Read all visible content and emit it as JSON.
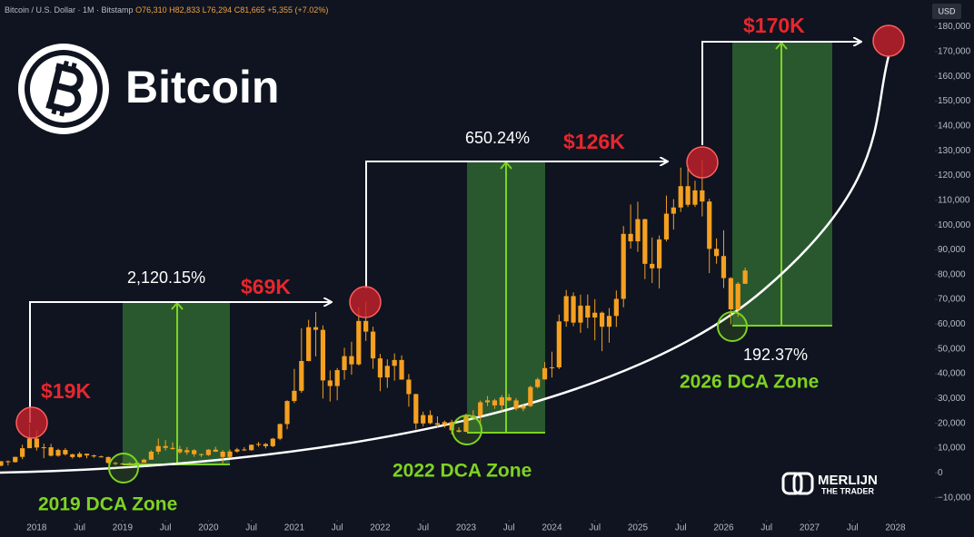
{
  "chart_data": {
    "type": "candlestick",
    "title": "Bitcoin",
    "symbol": "Bitcoin / U.S. Dollar · 1M · Bitstamp",
    "ohlc_legend": [
      "O76,310",
      "H82,833",
      "L76,294",
      "C81,665",
      "+5,355 (+7.02%)"
    ],
    "currency": "USD",
    "watermark": [
      "MERLIJN",
      "THE TRADER"
    ],
    "annotations": [
      "$19K",
      "$69K",
      "$126K",
      "$170K",
      "2,120.15%",
      "650.24%",
      "192.37%",
      "2019 DCA Zone",
      "2022 DCA Zone",
      "2026 DCA Zone"
    ],
    "color": "#f5a020",
    "x": [
      "2017-08",
      "2017-09",
      "2017-10",
      "2017-11",
      "2017-12",
      "2018-01",
      "2018-02",
      "2018-03",
      "2018-04",
      "2018-05",
      "2018-06",
      "2018-07",
      "2018-08",
      "2018-09",
      "2018-10",
      "2018-11",
      "2018-12",
      "2019-01",
      "2019-02",
      "2019-03",
      "2019-04",
      "2019-05",
      "2019-06",
      "2019-07",
      "2019-08",
      "2019-09",
      "2019-10",
      "2019-11",
      "2019-12",
      "2020-01",
      "2020-02",
      "2020-03",
      "2020-04",
      "2020-05",
      "2020-06",
      "2020-07",
      "2020-08",
      "2020-09",
      "2020-10",
      "2020-11",
      "2020-12",
      "2021-01",
      "2021-02",
      "2021-03",
      "2021-04",
      "2021-05",
      "2021-06",
      "2021-07",
      "2021-08",
      "2021-09",
      "2021-10",
      "2021-11",
      "2021-12",
      "2022-01",
      "2022-02",
      "2022-03",
      "2022-04",
      "2022-05",
      "2022-06",
      "2022-07",
      "2022-08",
      "2022-09",
      "2022-10",
      "2022-11",
      "2022-12",
      "2023-01",
      "2023-02",
      "2023-03",
      "2023-04",
      "2023-05",
      "2023-06",
      "2023-07",
      "2023-08",
      "2023-09",
      "2023-10",
      "2023-11",
      "2023-12",
      "2024-01",
      "2024-02",
      "2024-03",
      "2024-04",
      "2024-05",
      "2024-06",
      "2024-07",
      "2024-08",
      "2024-09",
      "2024-10",
      "2024-11",
      "2024-12",
      "2025-01",
      "2025-02",
      "2025-03",
      "2025-04",
      "2025-05",
      "2025-06",
      "2025-07",
      "2025-08",
      "2025-09",
      "2025-10",
      "2025-11",
      "2025-12",
      "2026-01",
      "2026-02",
      "2026-03",
      "2026-04"
    ],
    "open": [
      2870,
      4700,
      4340,
      6450,
      9950,
      13850,
      10220,
      10330,
      6920,
      9240,
      7490,
      6390,
      7730,
      7030,
      6630,
      6370,
      4020,
      3740,
      3460,
      3850,
      4100,
      5320,
      8560,
      10820,
      10080,
      9600,
      8290,
      9150,
      7550,
      7190,
      9350,
      8540,
      6410,
      8620,
      9450,
      9140,
      11340,
      11650,
      10780,
      13800,
      19700,
      28990,
      33110,
      45140,
      58790,
      57720,
      37300,
      35040,
      41460,
      47100,
      43790,
      61300,
      57000,
      46200,
      38500,
      43190,
      45540,
      37640,
      31790,
      19940,
      23310,
      20050,
      19430,
      20500,
      17170,
      16540,
      23130,
      23140,
      28480,
      29250,
      27220,
      30480,
      29230,
      25930,
      26960,
      34640,
      37720,
      42280,
      42580,
      61130,
      71330,
      60640,
      67490,
      62680,
      64630,
      58970,
      63330,
      70220,
      96450,
      93430,
      102400,
      84350,
      82550,
      94200,
      104600,
      107100,
      115700,
      108200,
      114000,
      109500,
      90400,
      87500,
      78600,
      66000,
      76310
    ],
    "high": [
      4750,
      4980,
      6470,
      11400,
      19666,
      17200,
      11800,
      11700,
      9750,
      9950,
      7760,
      8500,
      7750,
      7400,
      6980,
      6570,
      4400,
      4080,
      4200,
      4150,
      5640,
      9100,
      13880,
      13200,
      12330,
      10900,
      10400,
      9500,
      7750,
      9580,
      10500,
      9200,
      9460,
      10080,
      10380,
      11440,
      12470,
      12050,
      14100,
      19900,
      29300,
      41950,
      58350,
      61780,
      64900,
      59500,
      41330,
      42300,
      50500,
      52900,
      66900,
      69000,
      59000,
      47990,
      45800,
      48200,
      47400,
      39900,
      31950,
      24700,
      25200,
      22800,
      21100,
      21450,
      18400,
      23950,
      25250,
      29180,
      31000,
      29850,
      31400,
      31800,
      30200,
      27500,
      35200,
      38400,
      44700,
      48900,
      63900,
      73800,
      72800,
      71950,
      71980,
      70080,
      65100,
      66500,
      73600,
      99600,
      108300,
      109400,
      102500,
      95000,
      95800,
      111900,
      110500,
      123200,
      124500,
      117900,
      126200,
      110600,
      94600,
      97900,
      79000,
      77000,
      82833
    ],
    "low": [
      2700,
      2970,
      4150,
      5500,
      10700,
      9000,
      5900,
      6600,
      6500,
      7000,
      5750,
      6070,
      5880,
      6100,
      6200,
      3650,
      3120,
      3350,
      3390,
      3780,
      4100,
      5340,
      7450,
      9000,
      9300,
      7730,
      7300,
      6520,
      6430,
      6850,
      8450,
      3850,
      6150,
      8120,
      8830,
      8980,
      10540,
      9880,
      10380,
      13200,
      17600,
      28130,
      32300,
      45000,
      47000,
      30000,
      28800,
      29300,
      37600,
      39600,
      43300,
      53250,
      42000,
      32950,
      34300,
      37200,
      37600,
      26700,
      17600,
      18800,
      19600,
      18150,
      18200,
      15500,
      16300,
      16500,
      21400,
      19600,
      26950,
      25850,
      24800,
      28900,
      25200,
      24900,
      26550,
      34100,
      37600,
      38500,
      41900,
      59000,
      59200,
      56500,
      58400,
      53500,
      49100,
      52550,
      58900,
      66800,
      90500,
      89200,
      78200,
      76600,
      74400,
      93400,
      98200,
      105300,
      107300,
      107300,
      103500,
      80600,
      84400,
      74600,
      60000,
      63000,
      76294
    ],
    "close": [
      4700,
      4340,
      6450,
      9950,
      13850,
      10220,
      10330,
      6920,
      9240,
      7490,
      6390,
      7730,
      7030,
      6630,
      6370,
      4020,
      3740,
      3460,
      3850,
      4100,
      5320,
      8560,
      10820,
      10080,
      9600,
      8290,
      9150,
      7550,
      7190,
      9350,
      8540,
      6410,
      8620,
      9450,
      9140,
      11340,
      11650,
      10780,
      13800,
      19700,
      28990,
      33110,
      45140,
      58790,
      57720,
      37300,
      35040,
      41460,
      47100,
      43790,
      61300,
      57000,
      46200,
      38500,
      43190,
      45540,
      37640,
      31790,
      19940,
      23310,
      20050,
      19430,
      20500,
      17170,
      16540,
      23130,
      23140,
      28480,
      29250,
      27220,
      30480,
      29230,
      25930,
      26960,
      34640,
      37720,
      42280,
      42580,
      61130,
      71330,
      60640,
      67490,
      62680,
      64630,
      58970,
      63330,
      70220,
      96450,
      93430,
      102400,
      84350,
      82550,
      94200,
      104600,
      107100,
      115700,
      108200,
      114000,
      109500,
      90400,
      87500,
      78600,
      66000,
      76310,
      81665
    ],
    "xlim": [
      "2017-08",
      "2028-05"
    ],
    "xticks": [
      {
        "value": "2018-01",
        "label": "2018"
      },
      {
        "value": "2018-07",
        "label": "Jul"
      },
      {
        "value": "2019-01",
        "label": "2019"
      },
      {
        "value": "2019-07",
        "label": "Jul"
      },
      {
        "value": "2020-01",
        "label": "2020"
      },
      {
        "value": "2020-07",
        "label": "Jul"
      },
      {
        "value": "2021-01",
        "label": "2021"
      },
      {
        "value": "2021-07",
        "label": "Jul"
      },
      {
        "value": "2022-01",
        "label": "2022"
      },
      {
        "value": "2022-07",
        "label": "Jul"
      },
      {
        "value": "2023-01",
        "label": "2023"
      },
      {
        "value": "2023-07",
        "label": "Jul"
      },
      {
        "value": "2024-01",
        "label": "2024"
      },
      {
        "value": "2024-07",
        "label": "Jul"
      },
      {
        "value": "2025-01",
        "label": "2025"
      },
      {
        "value": "2025-07",
        "label": "Jul"
      },
      {
        "value": "2026-01",
        "label": "2026"
      },
      {
        "value": "2026-07",
        "label": "Jul"
      },
      {
        "value": "2027-01",
        "label": "2027"
      },
      {
        "value": "2027-07",
        "label": "Jul"
      },
      {
        "value": "2028-01",
        "label": "2028"
      }
    ],
    "ylim": [
      -16000,
      189000
    ],
    "yticks": [
      {
        "value": -10000,
        "label": "−10,000"
      },
      0,
      {
        "value": 10000,
        "label": "10,000"
      },
      {
        "value": 20000,
        "label": "20,000"
      },
      {
        "value": 30000,
        "label": "30,000"
      },
      {
        "value": 40000,
        "label": "40,000"
      },
      {
        "value": 50000,
        "label": "50,000"
      },
      {
        "value": 60000,
        "label": "60,000"
      },
      {
        "value": 70000,
        "label": "70,000"
      },
      {
        "value": 80000,
        "label": "80,000"
      },
      {
        "value": 90000,
        "label": "90,000"
      },
      {
        "value": 100000,
        "label": "100,000"
      },
      {
        "value": 110000,
        "label": "110,000"
      },
      {
        "value": 120000,
        "label": "120,000"
      },
      {
        "value": 130000,
        "label": "130,000"
      },
      {
        "value": 140000,
        "label": "140,000"
      },
      {
        "value": 150000,
        "label": "150,000"
      },
      {
        "value": 160000,
        "label": "160,000"
      },
      {
        "value": 170000,
        "label": "170,000"
      },
      {
        "value": 180000,
        "label": "180,000"
      }
    ],
    "grid": false
  }
}
